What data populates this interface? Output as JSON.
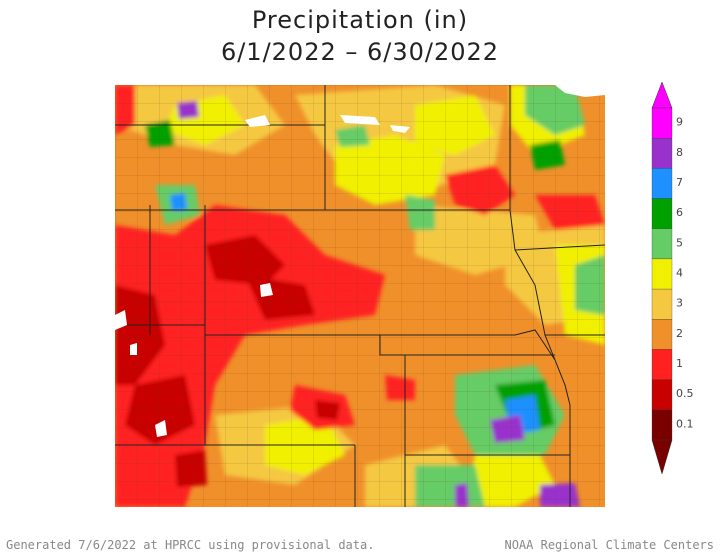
{
  "title": {
    "line1": "Precipitation (in)",
    "line2": "6/1/2022 – 6/30/2022"
  },
  "legend": {
    "labels": [
      "9",
      "8",
      "7",
      "6",
      "5",
      "4",
      "3",
      "2",
      "1",
      "0.5",
      "0.1"
    ],
    "colors": [
      "#ff00ff",
      "#9932cc",
      "#1e90ff",
      "#00a000",
      "#66cc66",
      "#f0f000",
      "#f5c842",
      "#f0902a",
      "#ff2020",
      "#c80000",
      "#7a0000"
    ]
  },
  "footer": {
    "left": "Generated 7/6/2022 at HPRCC using provisional data.",
    "right": "NOAA Regional Climate Centers"
  }
}
